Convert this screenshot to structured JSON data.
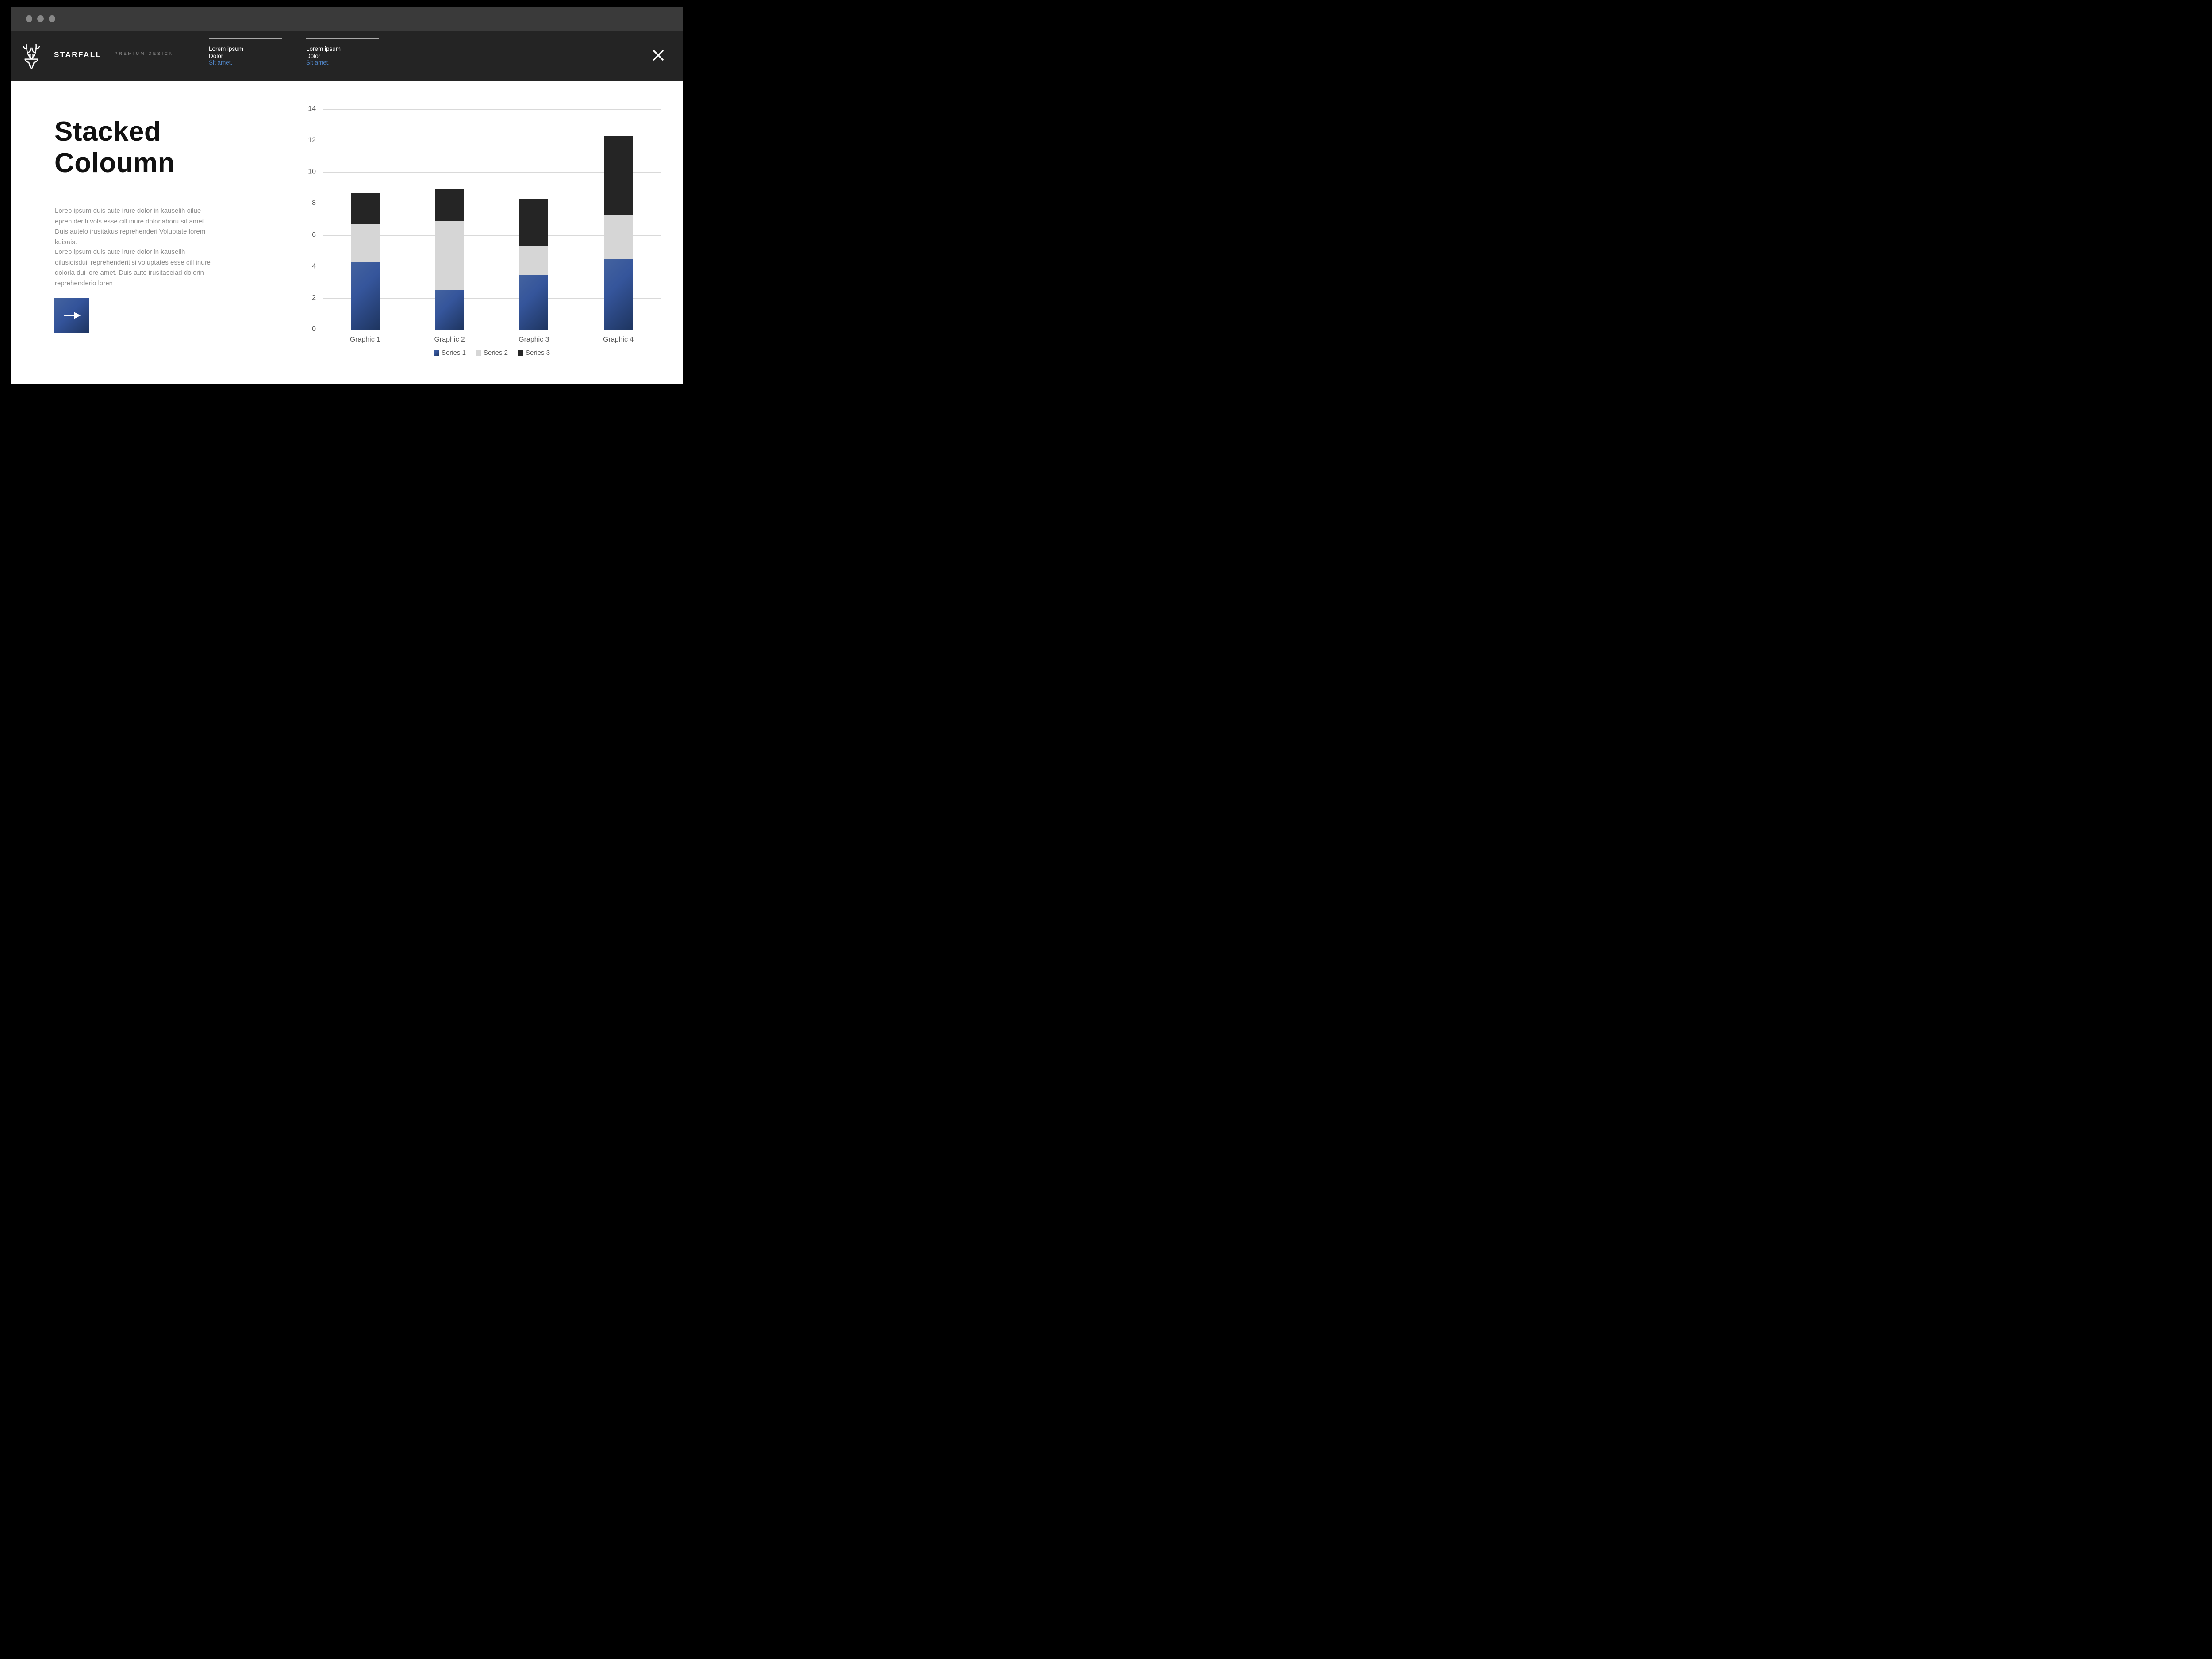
{
  "window": {
    "controls": [
      "window-dot-1",
      "window-dot-2",
      "window-dot-3"
    ]
  },
  "header": {
    "brand": "STARFALL",
    "tagline": "PREMIUM DESIGN",
    "nav": [
      {
        "line1": "Lorem ipsum",
        "line2": "Dolor",
        "link": "Sit amet."
      },
      {
        "line1": "Lorem ipsum",
        "line2": "Dolor",
        "link": "Sit amet."
      }
    ]
  },
  "main": {
    "title_line1": "Stacked",
    "title_line2": "Coloumn",
    "paragraph1": "Lorep  ipsum duis aute irure dolor in kauselih oilue epreh deriti vols esse cill inure dolorlaboru sit amet. Duis autelo irusitakus reprehenderi Voluptate lorem kuisais.",
    "paragraph2": "Lorep  ipsum duis aute irure dolor in kauselih oilusioisduil reprehenderitisi voluptates esse cill inure dolorla dui lore amet. Duis aute irusitaseiad dolorin reprehenderio loren",
    "cta_icon": "arrow-right-icon"
  },
  "colors": {
    "frame": "#000000",
    "titlebar": "#3a3a3a",
    "header": "#242424",
    "accent_blue_light": "#44639f",
    "accent_blue_dark": "#1e3560",
    "link_blue": "#4e82c2",
    "grid": "#d9d9d9",
    "tick_text": "#595959",
    "series2_gray": "#d6d6d6",
    "series3_black": "#252525"
  },
  "chart_data": {
    "type": "bar",
    "stacked": true,
    "title": "",
    "xlabel": "",
    "ylabel": "",
    "categories": [
      "Graphic 1",
      "Graphic 2",
      "Graphic 3",
      "Graphic 4"
    ],
    "series": [
      {
        "name": "Series 1",
        "values": [
          4.3,
          2.5,
          3.5,
          4.5
        ],
        "color": "#34549a"
      },
      {
        "name": "Series 2",
        "values": [
          2.4,
          4.4,
          1.8,
          2.8
        ],
        "color": "#d6d6d6"
      },
      {
        "name": "Series 3",
        "values": [
          2.0,
          2.0,
          3.0,
          5.0
        ],
        "color": "#252525"
      }
    ],
    "totals": [
      8.7,
      8.9,
      8.3,
      12.3
    ],
    "ylim": [
      0,
      14
    ],
    "ytick_step": 2,
    "grid": true,
    "legend_position": "bottom"
  }
}
